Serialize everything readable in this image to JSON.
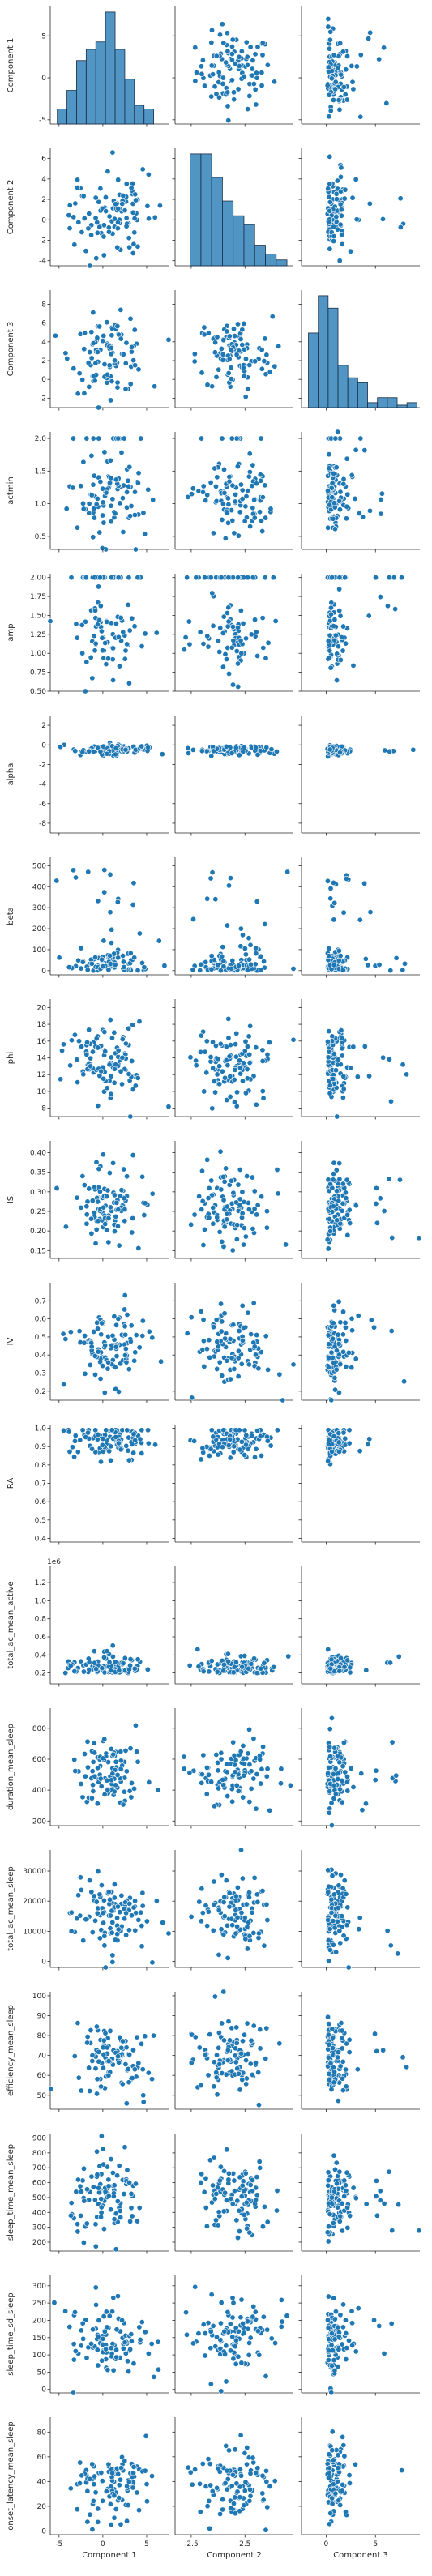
{
  "chart_data": {
    "type": "scatter",
    "layout": "pairplot",
    "point_color": "#1f77b4",
    "bar_color": "#4c88be",
    "x_vars": [
      {
        "name": "Component 1",
        "xlim": [
          -6,
          7.5
        ],
        "ticks": [
          -5,
          0,
          5
        ],
        "tick_labels": [
          "-5",
          "0",
          "5"
        ]
      },
      {
        "name": "Component 2",
        "xlim": [
          -4,
          7
        ],
        "ticks": [
          -2.5,
          2.5
        ],
        "tick_labels": [
          "",
          ""
        ]
      },
      {
        "name": "Component 3",
        "xlim": [
          -2.5,
          9.5
        ],
        "ticks": [
          0,
          5
        ],
        "tick_labels": [
          "0",
          "5"
        ]
      }
    ],
    "x_tick_labels_bottom": [
      [
        "-5",
        "0",
        "5"
      ],
      [
        "-2.5",
        "2.5"
      ],
      [
        "0",
        "5"
      ]
    ],
    "x_ticks_bottom": [
      [
        -5,
        0,
        5
      ],
      [
        -2.5,
        2.5
      ],
      [
        0,
        5
      ]
    ],
    "y_vars": [
      {
        "name": "Component 1",
        "ylim": [
          -5.5,
          8.5
        ],
        "ticks": [
          -5,
          0,
          5
        ],
        "tick_labels": [
          "-5",
          "0",
          "5"
        ],
        "offset_text": ""
      },
      {
        "name": "Component 2",
        "ylim": [
          -4.5,
          7
        ],
        "ticks": [
          -4,
          -2,
          0,
          2,
          4,
          6
        ],
        "tick_labels": [
          "-4",
          "-2",
          "0",
          "2",
          "4",
          "6"
        ],
        "offset_text": ""
      },
      {
        "name": "Component 3",
        "ylim": [
          -3,
          9.5
        ],
        "ticks": [
          -2,
          0,
          2,
          4,
          6,
          8
        ],
        "tick_labels": [
          "-2",
          "0",
          "2",
          "4",
          "6",
          "8"
        ],
        "offset_text": ""
      },
      {
        "name": "actmin",
        "ylim": [
          0.3,
          2.1
        ],
        "ticks": [
          0.5,
          1.0,
          1.5,
          2.0
        ],
        "tick_labels": [
          "0.5",
          "1.0",
          "1.5",
          "2.0"
        ],
        "offset_text": ""
      },
      {
        "name": "amp",
        "ylim": [
          0.5,
          2.05
        ],
        "ticks": [
          0.5,
          0.75,
          1.0,
          1.25,
          1.5,
          1.75,
          2.0
        ],
        "tick_labels": [
          "0.50",
          "0.75",
          "1.00",
          "1.25",
          "1.50",
          "1.75",
          "2.00"
        ],
        "offset_text": ""
      },
      {
        "name": "alpha",
        "ylim": [
          -9,
          3
        ],
        "ticks": [
          -8,
          -6,
          -4,
          -2,
          0,
          2
        ],
        "tick_labels": [
          "-8",
          "-6",
          "-4",
          "-2",
          "0",
          "2"
        ],
        "offset_text": ""
      },
      {
        "name": "beta",
        "ylim": [
          -20,
          540
        ],
        "ticks": [
          0,
          100,
          200,
          300,
          400,
          500
        ],
        "tick_labels": [
          "0",
          "100",
          "200",
          "300",
          "400",
          "500"
        ],
        "offset_text": ""
      },
      {
        "name": "phi",
        "ylim": [
          7,
          21
        ],
        "ticks": [
          8,
          10,
          12,
          14,
          16,
          18,
          20
        ],
        "tick_labels": [
          "8",
          "10",
          "12",
          "14",
          "16",
          "18",
          "20"
        ],
        "offset_text": ""
      },
      {
        "name": "IS",
        "ylim": [
          0.13,
          0.43
        ],
        "ticks": [
          0.15,
          0.2,
          0.25,
          0.3,
          0.35,
          0.4
        ],
        "tick_labels": [
          "0.15",
          "0.20",
          "0.25",
          "0.30",
          "0.35",
          "0.40"
        ],
        "offset_text": ""
      },
      {
        "name": "IV",
        "ylim": [
          0.15,
          0.8
        ],
        "ticks": [
          0.2,
          0.3,
          0.4,
          0.5,
          0.6,
          0.7
        ],
        "tick_labels": [
          "0.2",
          "0.3",
          "0.4",
          "0.5",
          "0.6",
          "0.7"
        ],
        "offset_text": ""
      },
      {
        "name": "RA",
        "ylim": [
          0.38,
          1.02
        ],
        "ticks": [
          0.4,
          0.5,
          0.6,
          0.7,
          0.8,
          0.9,
          1.0
        ],
        "tick_labels": [
          "0.4",
          "0.5",
          "0.6",
          "0.7",
          "0.8",
          "0.9",
          "1.0"
        ],
        "offset_text": ""
      },
      {
        "name": "total_ac_mean_active",
        "ylim": [
          80000,
          1380000
        ],
        "ticks": [
          200000,
          400000,
          600000,
          800000,
          1000000,
          1200000
        ],
        "tick_labels": [
          "0.2",
          "0.4",
          "0.6",
          "0.8",
          "1.0",
          "1.2"
        ],
        "offset_text": "1e6"
      },
      {
        "name": "duration_mean_sleep",
        "ylim": [
          170,
          930
        ],
        "ticks": [
          200,
          400,
          600,
          800
        ],
        "tick_labels": [
          "200",
          "400",
          "600",
          "800"
        ],
        "offset_text": ""
      },
      {
        "name": "total_ac_mean_sleep",
        "ylim": [
          -2000,
          37000
        ],
        "ticks": [
          0,
          10000,
          20000,
          30000
        ],
        "tick_labels": [
          "0",
          "10000",
          "20000",
          "30000"
        ],
        "offset_text": ""
      },
      {
        "name": "efficiency_mean_sleep",
        "ylim": [
          43,
          102
        ],
        "ticks": [
          50,
          60,
          70,
          80,
          90,
          100
        ],
        "tick_labels": [
          "50",
          "60",
          "70",
          "80",
          "90",
          "100"
        ],
        "offset_text": ""
      },
      {
        "name": "sleep_time_mean_sleep",
        "ylim": [
          140,
          930
        ],
        "ticks": [
          200,
          300,
          400,
          500,
          600,
          700,
          800,
          900
        ],
        "tick_labels": [
          "200",
          "300",
          "400",
          "500",
          "600",
          "700",
          "800",
          "900"
        ],
        "offset_text": ""
      },
      {
        "name": "sleep_time_sd_sleep",
        "ylim": [
          -10,
          330
        ],
        "ticks": [
          0,
          50,
          100,
          150,
          200,
          250,
          300
        ],
        "tick_labels": [
          "0",
          "50",
          "100",
          "150",
          "200",
          "250",
          "300"
        ],
        "offset_text": ""
      },
      {
        "name": "onset_latency_mean_sleep",
        "ylim": [
          -3,
          92
        ],
        "ticks": [
          0,
          20,
          40,
          60,
          80
        ],
        "tick_labels": [
          "0",
          "20",
          "40",
          "60",
          "80"
        ],
        "offset_text": ""
      }
    ],
    "histograms": [
      {
        "var": "Component 1",
        "bins": [
          -5.2,
          -4.1,
          -3.0,
          -1.9,
          -0.8,
          0.3,
          1.4,
          2.5,
          3.6,
          4.7,
          5.8
        ],
        "counts": [
          4,
          9,
          17,
          20,
          22,
          30,
          20,
          12,
          5,
          4
        ]
      },
      {
        "var": "Component 2",
        "bins": [
          -2.6,
          -1.6,
          -0.6,
          0.4,
          1.4,
          2.4,
          3.4,
          4.4,
          5.4,
          6.4
        ],
        "counts": [
          38,
          38,
          30,
          22,
          17,
          14,
          7,
          4,
          2
        ]
      },
      {
        "var": "Component 3",
        "bins": [
          -1.8,
          -0.8,
          0.2,
          1.2,
          2.2,
          3.2,
          4.2,
          5.2,
          6.2,
          7.2,
          8.2,
          9.2
        ],
        "counts": [
          30,
          45,
          40,
          17,
          12,
          10,
          2,
          4,
          4,
          1,
          2
        ]
      }
    ]
  }
}
